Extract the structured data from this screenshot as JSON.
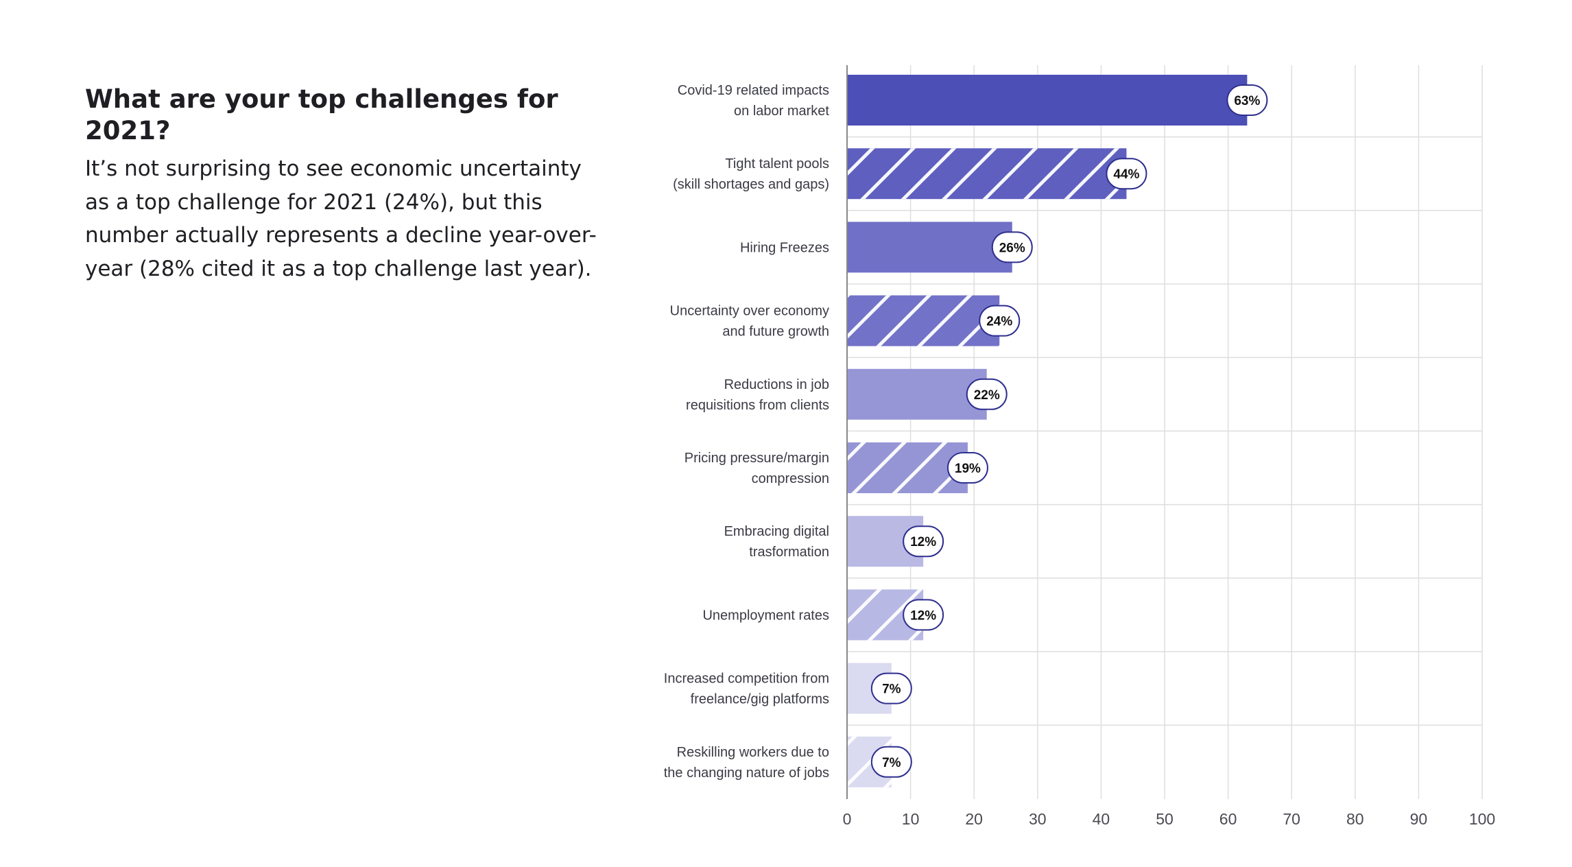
{
  "intro": {
    "heading": "What are your top challenges for 2021?",
    "paragraph": "It’s not surprising to see economic uncertainty as a top challenge for 2021 (24%), but this number actually represents a decline year-over-year (28% cited it as a top challenge last year)."
  },
  "colors": {
    "shades": [
      "#4b4fb6",
      "#5e5fbf",
      "#7070c6",
      "#7272c8",
      "#9696d6",
      "#9595d6",
      "#b9b9e4",
      "#b8b8e4",
      "#dadaf0",
      "#dadaf0"
    ],
    "pill_border": "#2e2f8f",
    "grid": "#dedede",
    "axis": "#888888"
  },
  "chart_data": {
    "type": "bar",
    "orientation": "horizontal",
    "categories": [
      [
        "Covid-19 related impacts",
        "on labor market"
      ],
      [
        "Tight talent pools",
        "(skill shortages and gaps)"
      ],
      [
        "Hiring Freezes"
      ],
      [
        "Uncertainty over economy",
        "and future growth"
      ],
      [
        "Reductions in job",
        "requisitions from clients"
      ],
      [
        "Pricing pressure/margin",
        "compression"
      ],
      [
        "Embracing digital",
        "trasformation"
      ],
      [
        "Unemployment rates"
      ],
      [
        "Increased competition from",
        "freelance/gig platforms"
      ],
      [
        "Reskilling workers due to",
        "the changing nature of jobs"
      ]
    ],
    "values": [
      63,
      44,
      26,
      24,
      22,
      19,
      12,
      12,
      7,
      7
    ],
    "value_labels": [
      "63%",
      "44%",
      "26%",
      "24%",
      "22%",
      "19%",
      "12%",
      "12%",
      "7%",
      "7%"
    ],
    "hatched": [
      false,
      true,
      false,
      true,
      false,
      true,
      false,
      true,
      false,
      true
    ],
    "xlim": [
      0,
      100
    ],
    "xticks": [
      0,
      10,
      20,
      30,
      40,
      50,
      60,
      70,
      80,
      90,
      100
    ],
    "grid": true
  }
}
